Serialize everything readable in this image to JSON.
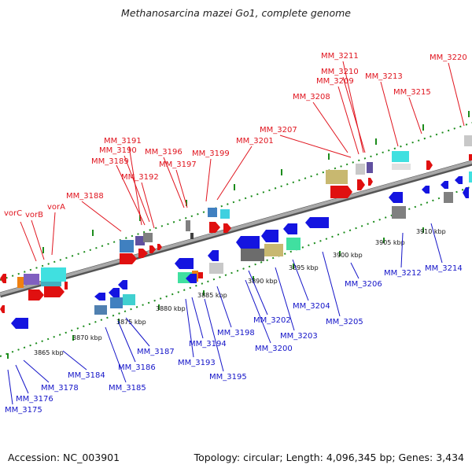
{
  "title": "Methanosarcina mazei Go1, complete genome",
  "footer": {
    "accession": "Accession: NC_003901",
    "summary": "Topology: circular; Length: 4,096,345 bp; Genes: 3,434"
  },
  "colors": {
    "top_label": "#e0141e",
    "bottom_label": "#1414c8",
    "tick": "#1c8c1c",
    "backbone": "#909090"
  },
  "ticks": [
    "3865 kbp",
    "3870 kbp",
    "3875 kbp",
    "3880 kbp",
    "3885 kbp",
    "3890 kbp",
    "3895 kbp",
    "3900 kbp",
    "3905 kbp",
    "3910 kbp"
  ],
  "top_labels": [
    "vorC",
    "vorB",
    "vorA",
    "MM_3188",
    "MM_3189",
    "MM_3190",
    "MM_3191",
    "MM_3192",
    "MM_3196",
    "MM_3197",
    "MM_3199",
    "MM_3201",
    "MM_3207",
    "MM_3208",
    "MM_3209",
    "MM_3210",
    "MM_3211",
    "MM_3213",
    "MM_3215",
    "MM_3220"
  ],
  "bottom_labels": [
    "MM_3175",
    "MM_3176",
    "MM_3178",
    "MM_3184",
    "MM_3185",
    "MM_3186",
    "MM_3187",
    "MM_3193",
    "MM_3194",
    "MM_3195",
    "MM_3198",
    "MM_3200",
    "MM_3202",
    "MM_3203",
    "MM_3204",
    "MM_3205",
    "MM_3206",
    "MM_3212",
    "MM_3214"
  ]
}
